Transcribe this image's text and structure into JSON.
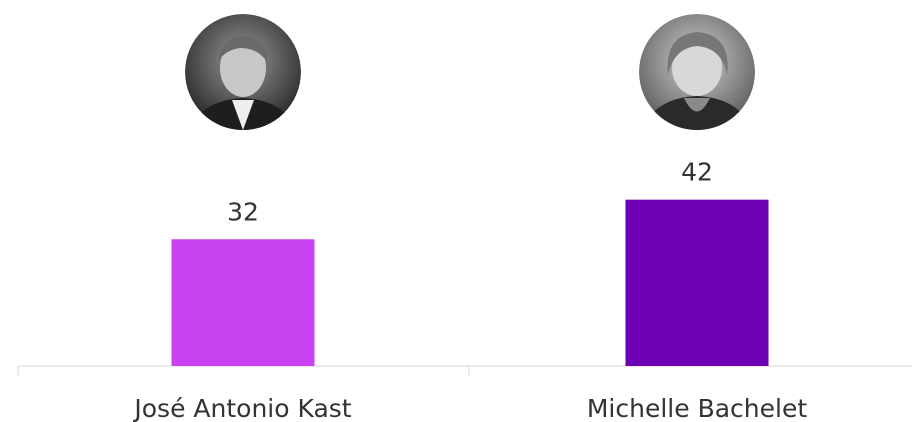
{
  "chart_data": {
    "type": "bar",
    "categories": [
      "José Antonio Kast",
      "Michelle Bachelet"
    ],
    "values": [
      32,
      42
    ],
    "colors": [
      "#c842f2",
      "#6d00b5"
    ]
  }
}
